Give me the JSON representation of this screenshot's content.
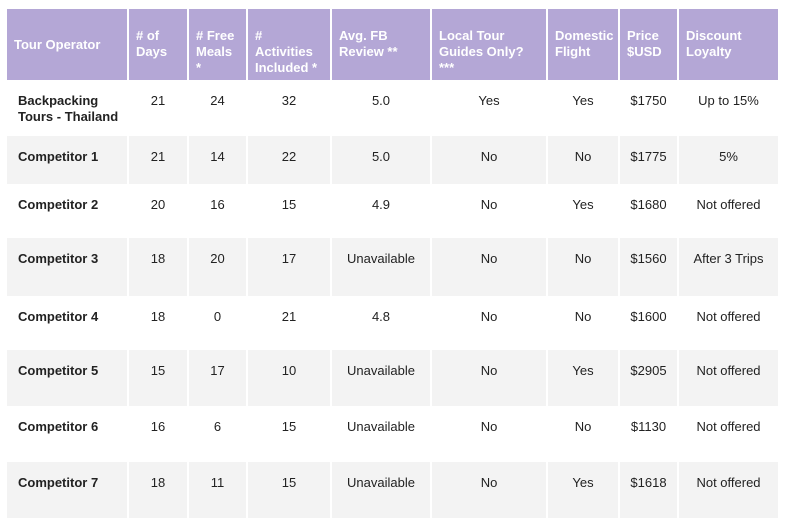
{
  "table": {
    "headers": [
      "Tour Operator",
      "# of Days",
      "# Free Meals *",
      "# Activities Included *",
      "Avg. FB Review **",
      "Local Tour Guides Only? ***",
      "Domestic Flight",
      "Price $USD",
      "Discount Loyalty"
    ],
    "rows": [
      [
        "Backpacking Tours - Thailand",
        "21",
        "24",
        "32",
        "5.0",
        "Yes",
        "Yes",
        "$1750",
        "Up to 15%"
      ],
      [
        "Competitor 1",
        "21",
        "14",
        "22",
        "5.0",
        "No",
        "No",
        "$1775",
        "5%"
      ],
      [
        "Competitor 2",
        "20",
        "16",
        "15",
        "4.9",
        "No",
        "Yes",
        "$1680",
        "Not offered"
      ],
      [
        "Competitor 3",
        "18",
        "20",
        "17",
        "Unavailable",
        "No",
        "No",
        "$1560",
        "After 3 Trips"
      ],
      [
        "Competitor 4",
        "18",
        "0",
        "21",
        "4.8",
        "No",
        "No",
        "$1600",
        "Not offered"
      ],
      [
        "Competitor 5",
        "15",
        "17",
        "10",
        "Unavailable",
        "No",
        "Yes",
        "$2905",
        "Not offered"
      ],
      [
        "Competitor 6",
        "16",
        "6",
        "15",
        "Unavailable",
        "No",
        "No",
        "$1130",
        "Not offered"
      ],
      [
        "Competitor 7",
        "18",
        "11",
        "15",
        "Unavailable",
        "No",
        "Yes",
        "$1618",
        "Not offered"
      ]
    ]
  },
  "colors": {
    "header_bg": "#b4a7d6",
    "header_text": "#ffffff",
    "row_alt_bg": "#f3f3f3"
  }
}
